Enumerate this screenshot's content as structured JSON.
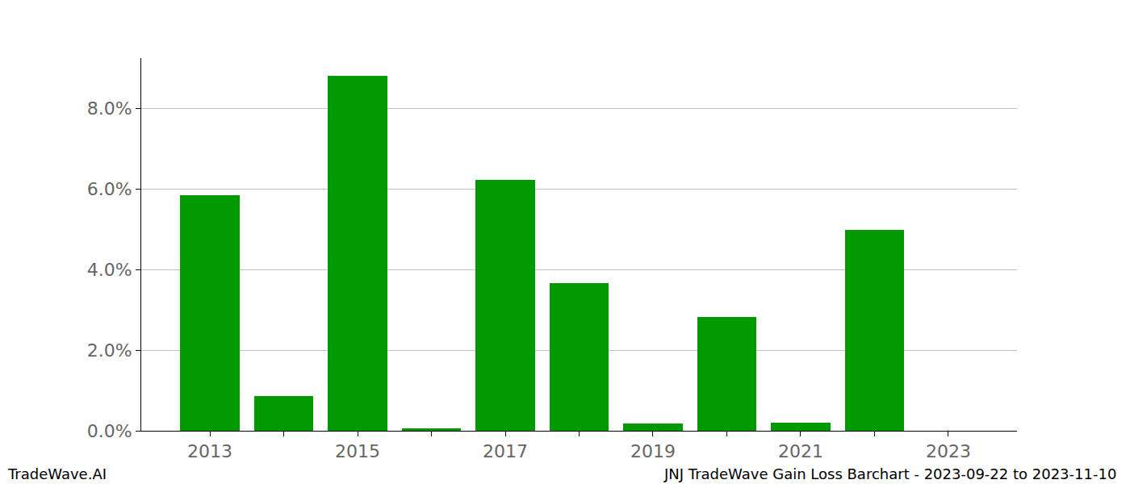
{
  "chart_data": {
    "type": "bar",
    "x": [
      2013,
      2014,
      2015,
      2016,
      2017,
      2018,
      2019,
      2020,
      2021,
      2022,
      2023
    ],
    "values": [
      5.85,
      0.87,
      8.8,
      0.07,
      6.22,
      3.67,
      0.18,
      2.83,
      0.2,
      4.98,
      0
    ],
    "color": "#009900",
    "xlim": [
      2012.07,
      2023.93
    ],
    "xticks": [
      2013,
      2015,
      2017,
      2019,
      2021,
      2023
    ],
    "ylim": [
      0,
      9.24
    ],
    "yticks": [
      {
        "value": 0,
        "label": "0.0%"
      },
      {
        "value": 2,
        "label": "2.0%"
      },
      {
        "value": 4,
        "label": "4.0%"
      },
      {
        "value": 6,
        "label": "6.0%"
      },
      {
        "value": 8,
        "label": "8.0%"
      }
    ],
    "grid": true,
    "brand": "TradeWave.AI",
    "caption": "JNJ TradeWave Gain Loss Barchart - 2023-09-22 to 2023-11-10"
  }
}
